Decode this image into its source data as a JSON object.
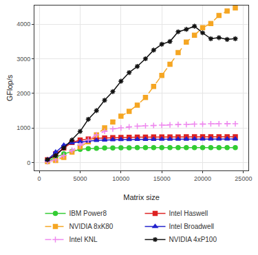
{
  "chart_data": {
    "type": "line",
    "x_label": "Matrix size",
    "y_label": "GFlop/s",
    "x": [
      1000,
      2000,
      3000,
      4000,
      5000,
      6000,
      7000,
      8000,
      9000,
      10000,
      11000,
      12000,
      13000,
      14000,
      15000,
      16000,
      17000,
      18000,
      19000,
      20000,
      21000,
      22000,
      23000,
      24000
    ],
    "series": [
      {
        "name": "IBM Power8",
        "color": "#33cc33",
        "marker": "circle",
        "line_style": "solid",
        "values": [
          30,
          150,
          250,
          320,
          380,
          400,
          410,
          420,
          420,
          425,
          425,
          430,
          430,
          430,
          430,
          430,
          430,
          430,
          430,
          430,
          430,
          430,
          430,
          430
        ]
      },
      {
        "name": "Intel Haswell",
        "color": "#dd2222",
        "marker": "square",
        "line_style": "solid",
        "values": [
          80,
          250,
          420,
          580,
          650,
          680,
          700,
          710,
          720,
          725,
          730,
          735,
          735,
          740,
          740,
          740,
          740,
          745,
          745,
          745,
          745,
          745,
          745,
          745
        ]
      },
      {
        "name": "NVIDIA 8xK80",
        "color": "#f5a623",
        "marker": "square",
        "line_style": "dashed",
        "values": [
          30,
          60,
          150,
          300,
          450,
          600,
          800,
          1000,
          1170,
          1340,
          1480,
          1660,
          1880,
          2200,
          2520,
          2840,
          3180,
          3480,
          3680,
          3900,
          4020,
          4250,
          4380,
          4470
        ]
      },
      {
        "name": "Intel Broadwell",
        "color": "#2222cc",
        "marker": "triangle",
        "line_style": "solid",
        "values": [
          80,
          300,
          500,
          570,
          600,
          620,
          640,
          650,
          660,
          665,
          665,
          670,
          670,
          670,
          675,
          675,
          675,
          675,
          680,
          680,
          680,
          680,
          680,
          680
        ]
      },
      {
        "name": "Intel KNL",
        "color": "#ee88ee",
        "marker": "plus",
        "line_style": "dashed",
        "values": [
          20,
          80,
          200,
          350,
          500,
          650,
          800,
          900,
          970,
          1000,
          1030,
          1050,
          1060,
          1070,
          1080,
          1090,
          1100,
          1100,
          1110,
          1110,
          1120,
          1120,
          1120,
          1120
        ]
      },
      {
        "name": "NVIDIA 4xP100",
        "color": "#111111",
        "marker": "asterisk",
        "line_style": "solid",
        "values": [
          80,
          200,
          420,
          650,
          900,
          1250,
          1500,
          1800,
          2050,
          2350,
          2600,
          2780,
          3000,
          3250,
          3420,
          3500,
          3780,
          3850,
          3940,
          3750,
          3580,
          3610,
          3560,
          3580
        ]
      }
    ],
    "xlim": [
      -600,
      25600
    ],
    "xticks": [
      0,
      5000,
      10000,
      15000,
      20000,
      25000
    ],
    "ylim": [
      -230,
      4540
    ],
    "yticks": [
      0,
      1000,
      2000,
      3000,
      4000
    ],
    "grid": true,
    "legend": "bottom"
  }
}
